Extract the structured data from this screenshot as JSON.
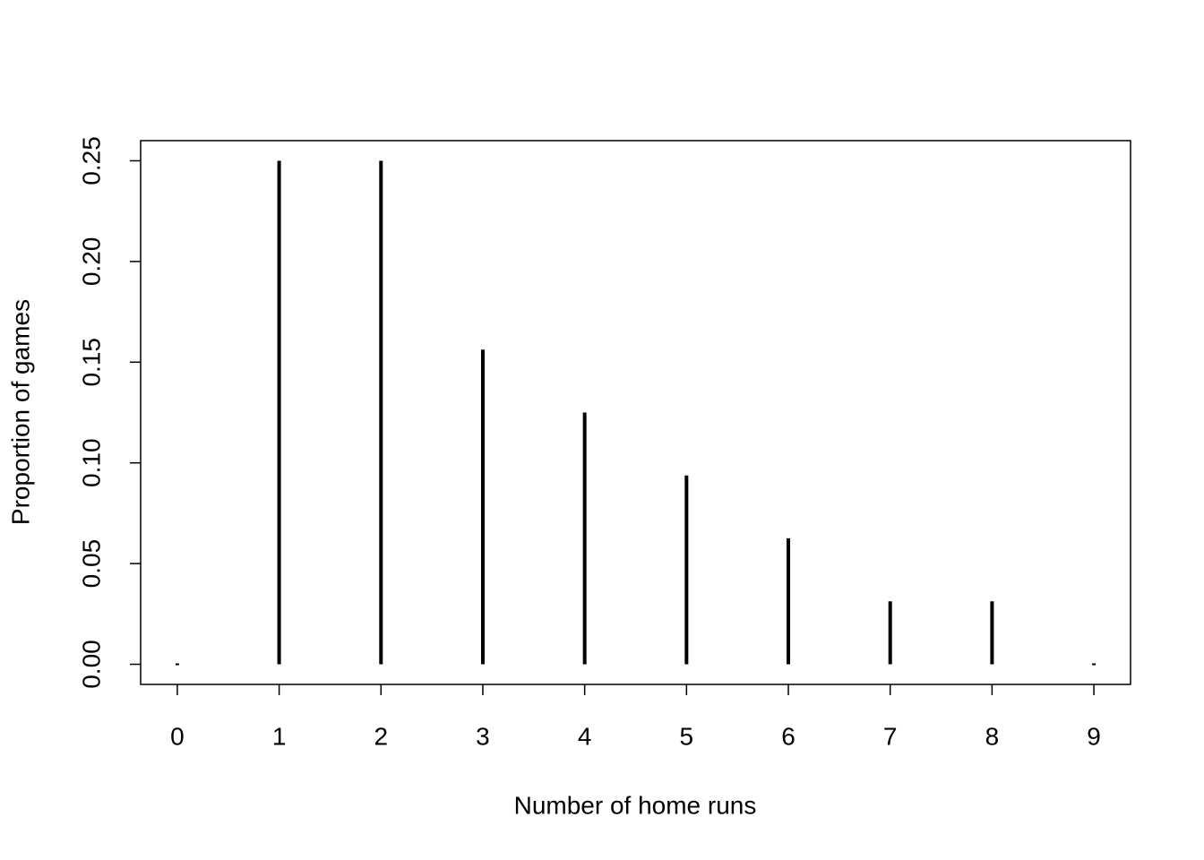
{
  "chart_data": {
    "type": "spike",
    "x_label": "Number of home runs",
    "y_label": "Proportion of games",
    "x": [
      0,
      1,
      2,
      3,
      4,
      5,
      6,
      7,
      8,
      9
    ],
    "values": [
      0,
      0.25,
      0.25,
      0.15625,
      0.125,
      0.09375,
      0.0625,
      0.03125,
      0.03125,
      0
    ],
    "color": "#000000",
    "xlim": [
      -0.36,
      9.36
    ],
    "xticks": [
      0,
      1,
      2,
      3,
      4,
      5,
      6,
      7,
      8,
      9
    ],
    "ylim": [
      -0.01,
      0.26
    ],
    "yticks": [
      {
        "value": 0,
        "label": "0.00"
      },
      0.05,
      {
        "value": 0.1,
        "label": "0.10"
      },
      0.15,
      {
        "value": 0.2,
        "label": "0.20"
      },
      0.25
    ]
  }
}
